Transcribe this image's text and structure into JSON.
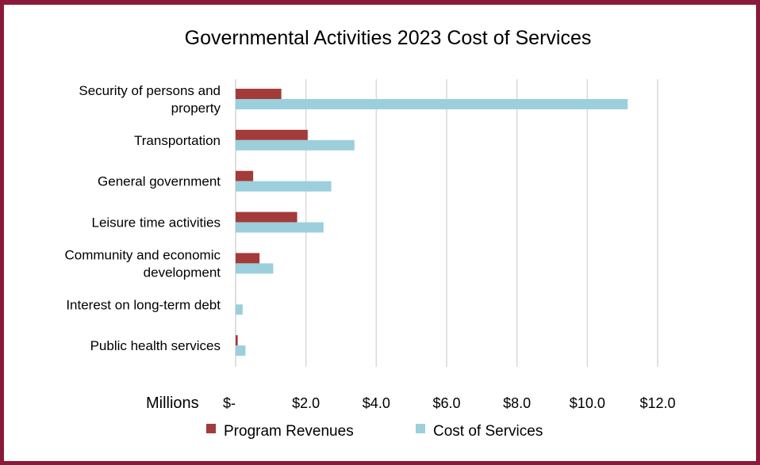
{
  "chart_data": {
    "type": "bar",
    "orientation": "horizontal",
    "title": "Governmental  Activities 2023 Cost of Services",
    "unit_label": "Millions",
    "categories": [
      [
        "Security of persons and",
        "property"
      ],
      [
        "Transportation"
      ],
      [
        "General government"
      ],
      [
        "Leisure time activities"
      ],
      [
        "Community and economic",
        "development"
      ],
      [
        "Interest on long-term debt"
      ],
      [
        "Public health services"
      ]
    ],
    "series": [
      {
        "name": "Program Revenues",
        "color": "#a33b3b",
        "values": [
          1.3,
          2.05,
          0.5,
          1.75,
          0.68,
          0.0,
          0.06
        ]
      },
      {
        "name": "Cost of Services",
        "color": "#9ccfdc",
        "values": [
          11.15,
          3.38,
          2.72,
          2.5,
          1.07,
          0.2,
          0.28
        ]
      }
    ],
    "xlim": [
      0,
      12
    ],
    "ticks": [
      0,
      2,
      4,
      6,
      8,
      10,
      12
    ],
    "tick_labels": [
      "$-",
      "$2.0",
      "$4.0",
      "$6.0",
      "$8.0",
      "$10.0",
      "$12.0"
    ],
    "grid": true,
    "legend_position": "bottom"
  }
}
